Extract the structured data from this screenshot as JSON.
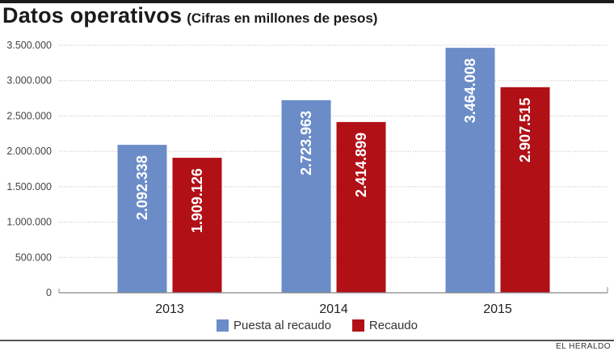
{
  "header": {
    "title": "Datos operativos",
    "subtitle": "(Cifras en millones de pesos)"
  },
  "credit": "EL HERALDO",
  "colors": {
    "puesta": "#6b8cc7",
    "recaudo": "#b01016",
    "top_bar": "#1c1c1c",
    "grid": "#bbbbbb",
    "axis": "#888888"
  },
  "chart_data": {
    "type": "bar",
    "title": "Datos operativos (Cifras en millones de pesos)",
    "xlabel": "",
    "ylabel": "",
    "categories": [
      "2013",
      "2014",
      "2015"
    ],
    "series": [
      {
        "name": "Puesta al recaudo",
        "color": "#6b8cc7",
        "values": [
          2092338,
          2723963,
          3464008
        ],
        "labels": [
          "2.092.338",
          "2.723.963",
          "3.464.008"
        ]
      },
      {
        "name": "Recaudo",
        "color": "#b01016",
        "values": [
          1909126,
          2414899,
          2907515
        ],
        "labels": [
          "1.909.126",
          "2.414.899",
          "2.907.515"
        ]
      }
    ],
    "ylim": [
      0,
      3500000
    ],
    "yticks": [
      0,
      500000,
      1000000,
      1500000,
      2000000,
      2500000,
      3000000,
      3500000
    ],
    "ytick_labels": [
      "0",
      "500.000",
      "1.000.000",
      "1.500.000",
      "2.000.000",
      "2.500.000",
      "3.000.000",
      "3.500.000"
    ],
    "grid": true,
    "grid_style": "dotted",
    "legend": "bottom-center",
    "data_labels": "inside-bar-rotated"
  }
}
